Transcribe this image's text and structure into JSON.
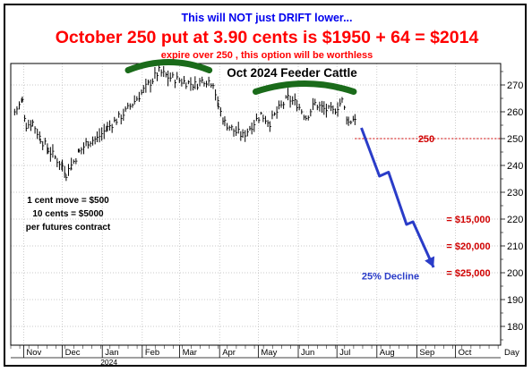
{
  "header": {
    "line1": "This will NOT just DRIFT lower...",
    "line2": "October 250 put at 3.90 cents is $1950 + 64 = $2014",
    "line3": "expire over 250 , this option will be worthless"
  },
  "chart_data": {
    "type": "bar",
    "title": "Oct 2024 Feeder Cattle",
    "ylim": [
      173,
      278
    ],
    "y_ticks": [
      180,
      190,
      200,
      210,
      220,
      230,
      240,
      250,
      260,
      270
    ],
    "x_ticks": [
      "Nov",
      "Dec",
      "Jan",
      "Feb",
      "Mar",
      "Apr",
      "May",
      "Jun",
      "Jul",
      "Aug",
      "Sep",
      "Oct",
      "Day"
    ],
    "x_year_label": "2024",
    "grid": true,
    "strike_line": {
      "value": 250,
      "label": "250"
    },
    "projection": {
      "points": [
        {
          "date": "2024-07-20",
          "value": 254
        },
        {
          "date": "2024-08-03",
          "value": 236
        },
        {
          "date": "2024-08-10",
          "value": 237.5
        },
        {
          "date": "2024-08-24",
          "value": 218
        },
        {
          "date": "2024-08-29",
          "value": 219
        },
        {
          "date": "2024-09-14",
          "value": 202
        }
      ],
      "label": "25% Decline"
    },
    "profit_levels": [
      {
        "value": 220,
        "label": "= $15,000"
      },
      {
        "value": 210,
        "label": "= $20,000"
      },
      {
        "value": 200,
        "label": "= $25,000"
      }
    ],
    "annotations": [
      "1 cent move = $500",
      "10 cents = $5000",
      "per futures contract"
    ],
    "series": [
      {
        "values": [
          {
            "date": "2023-10-25",
            "value": 260
          },
          {
            "date": "2023-10-31",
            "value": 264
          },
          {
            "date": "2023-11-03",
            "value": 255
          },
          {
            "date": "2023-11-08",
            "value": 256
          },
          {
            "date": "2023-11-14",
            "value": 250
          },
          {
            "date": "2023-11-20",
            "value": 246
          },
          {
            "date": "2023-11-27",
            "value": 242
          },
          {
            "date": "2023-12-01",
            "value": 240
          },
          {
            "date": "2023-12-04",
            "value": 237
          },
          {
            "date": "2023-12-08",
            "value": 240
          },
          {
            "date": "2023-12-14",
            "value": 245
          },
          {
            "date": "2023-12-21",
            "value": 249
          },
          {
            "date": "2023-12-28",
            "value": 250
          },
          {
            "date": "2024-01-05",
            "value": 254
          },
          {
            "date": "2024-01-12",
            "value": 257
          },
          {
            "date": "2024-01-19",
            "value": 260
          },
          {
            "date": "2024-01-26",
            "value": 264
          },
          {
            "date": "2024-02-02",
            "value": 268
          },
          {
            "date": "2024-02-09",
            "value": 272
          },
          {
            "date": "2024-02-14",
            "value": 275
          },
          {
            "date": "2024-02-21",
            "value": 273
          },
          {
            "date": "2024-02-28",
            "value": 272
          },
          {
            "date": "2024-03-06",
            "value": 271
          },
          {
            "date": "2024-03-13",
            "value": 270
          },
          {
            "date": "2024-03-20",
            "value": 272
          },
          {
            "date": "2024-03-27",
            "value": 271
          },
          {
            "date": "2024-03-31",
            "value": 262
          },
          {
            "date": "2024-04-05",
            "value": 256
          },
          {
            "date": "2024-04-12",
            "value": 253
          },
          {
            "date": "2024-04-19",
            "value": 251
          },
          {
            "date": "2024-04-26",
            "value": 255
          },
          {
            "date": "2024-05-03",
            "value": 259
          },
          {
            "date": "2024-05-10",
            "value": 256
          },
          {
            "date": "2024-05-17",
            "value": 261
          },
          {
            "date": "2024-05-24",
            "value": 265
          },
          {
            "date": "2024-05-31",
            "value": 263
          },
          {
            "date": "2024-06-07",
            "value": 258
          },
          {
            "date": "2024-06-14",
            "value": 263
          },
          {
            "date": "2024-06-21",
            "value": 261
          },
          {
            "date": "2024-06-28",
            "value": 260
          },
          {
            "date": "2024-07-05",
            "value": 264
          },
          {
            "date": "2024-07-10",
            "value": 256
          },
          {
            "date": "2024-07-15",
            "value": 258
          }
        ]
      }
    ]
  }
}
